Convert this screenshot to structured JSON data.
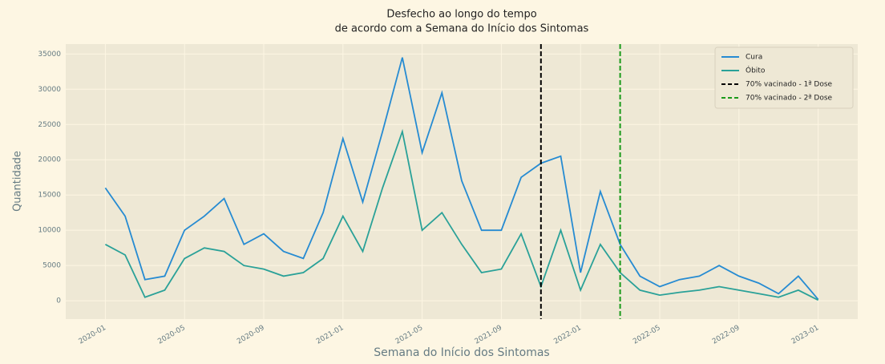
{
  "chart_data": {
    "type": "line",
    "title": [
      "Desfecho ao longo do tempo",
      "de acordo com a Semana do Início dos Sintomas"
    ],
    "x_label": "Semana do Início dos Sintomas",
    "y_label": "Quantidade",
    "x": [
      "2020-01",
      "2020-02",
      "2020-03",
      "2020-04",
      "2020-05",
      "2020-06",
      "2020-07",
      "2020-08",
      "2020-09",
      "2020-10",
      "2020-11",
      "2020-12",
      "2021-01",
      "2021-02",
      "2021-03",
      "2021-04",
      "2021-05",
      "2021-06",
      "2021-07",
      "2021-08",
      "2021-09",
      "2021-10",
      "2021-11",
      "2021-12",
      "2022-01",
      "2022-02",
      "2022-03",
      "2022-04",
      "2022-05",
      "2022-06",
      "2022-07",
      "2022-08",
      "2022-09",
      "2022-10",
      "2022-11",
      "2022-12",
      "2023-01"
    ],
    "series": [
      {
        "name": "Cura",
        "color": "#268bd2",
        "values": [
          16000,
          12000,
          3000,
          3500,
          10000,
          12000,
          14500,
          8000,
          9500,
          7000,
          6000,
          12500,
          23000,
          14000,
          24000,
          34500,
          21000,
          29500,
          17000,
          10000,
          10000,
          17500,
          19500,
          20500,
          4000,
          15500,
          8000,
          3500,
          2000,
          3000,
          3500,
          5000,
          3500,
          2500,
          1000,
          3500,
          200
        ]
      },
      {
        "name": "Óbito",
        "color": "#2aa198",
        "values": [
          8000,
          6500,
          500,
          1500,
          6000,
          7500,
          7000,
          5000,
          4500,
          3500,
          4000,
          6000,
          12000,
          7000,
          16000,
          24000,
          10000,
          12500,
          8000,
          4000,
          4500,
          9500,
          2000,
          10000,
          1500,
          8000,
          4000,
          1500,
          800,
          1200,
          1500,
          2000,
          1500,
          1000,
          500,
          1500,
          100
        ]
      }
    ],
    "vlines": [
      {
        "x": "2021-11",
        "name": "70% vacinado - 1ª Dose",
        "color": "#000000"
      },
      {
        "x": "2022-03",
        "name": "70% vacinado - 2ª Dose",
        "color": "#1a9a1a"
      }
    ],
    "xlim": [
      "2019-11",
      "2023-03"
    ],
    "xticks": [
      "2020-01",
      "2020-05",
      "2020-09",
      "2021-01",
      "2021-05",
      "2021-09",
      "2022-01",
      "2022-05",
      "2022-09",
      "2023-01"
    ],
    "ylim": [
      -2600,
      36400
    ],
    "yticks": [
      0,
      5000,
      10000,
      15000,
      20000,
      25000,
      30000,
      35000
    ],
    "grid": true,
    "legend": "upper right"
  }
}
